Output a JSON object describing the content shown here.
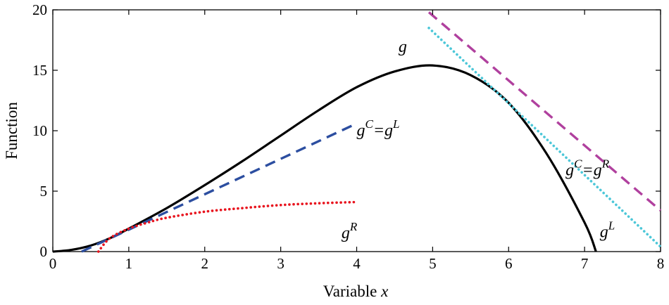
{
  "chart_data": {
    "type": "line",
    "xlabel": "Variable",
    "xlabel_var": "x",
    "ylabel": "Function",
    "xlim": [
      0,
      8
    ],
    "ylim": [
      0,
      20
    ],
    "xticks": [
      0,
      1,
      2,
      3,
      4,
      5,
      6,
      7,
      8
    ],
    "yticks": [
      0,
      5,
      10,
      15,
      20
    ],
    "grid": false,
    "series": [
      {
        "name": "g",
        "style": "solid",
        "color": "#000000",
        "x": [
          0,
          0.25,
          0.5,
          0.75,
          1,
          1.5,
          2,
          2.5,
          3,
          3.5,
          4,
          4.5,
          5,
          5.5,
          6,
          6.5,
          7,
          7.15
        ],
        "y": [
          0,
          0.15,
          0.5,
          1.1,
          1.9,
          3.6,
          5.5,
          7.5,
          9.6,
          11.7,
          13.6,
          14.9,
          15.4,
          14.6,
          12.3,
          8.1,
          2.4,
          0
        ]
      },
      {
        "name": "gC=gL (left)",
        "style": "dashed",
        "color": "#2c4ea0",
        "x": [
          0.38,
          4
        ],
        "y": [
          0,
          10.6
        ]
      },
      {
        "name": "gR",
        "style": "dotted",
        "color": "#e8141e",
        "x": [
          0.6,
          0.75,
          1,
          1.25,
          1.5,
          2,
          2.5,
          3,
          3.5,
          4
        ],
        "y": [
          0,
          1.1,
          1.9,
          2.4,
          2.8,
          3.3,
          3.6,
          3.85,
          4.0,
          4.1
        ]
      },
      {
        "name": "gC=gR (right)",
        "style": "dashed",
        "color": "#b0409e",
        "x": [
          4.95,
          8
        ],
        "y": [
          19.8,
          3.4
        ]
      },
      {
        "name": "gL (right)",
        "style": "dotted",
        "color": "#4cc7d8",
        "x": [
          4.95,
          8
        ],
        "y": [
          18.5,
          0.4
        ]
      }
    ],
    "annotations": [
      {
        "base": "g",
        "sup": "",
        "eq": "",
        "base2": "",
        "sup2": "",
        "x": 4.55,
        "y": 16.5
      },
      {
        "base": "g",
        "sup": "C",
        "eq": "=",
        "base2": "g",
        "sup2": "L",
        "x": 4.0,
        "y": 9.6
      },
      {
        "base": "g",
        "sup": "R",
        "eq": "",
        "base2": "",
        "sup2": "",
        "x": 3.8,
        "y": 1.1
      },
      {
        "base": "g",
        "sup": "C",
        "eq": "=",
        "base2": "g",
        "sup2": "R",
        "x": 6.75,
        "y": 6.3
      },
      {
        "base": "g",
        "sup": "L",
        "eq": "",
        "base2": "",
        "sup2": "",
        "x": 7.2,
        "y": 1.2
      }
    ]
  }
}
